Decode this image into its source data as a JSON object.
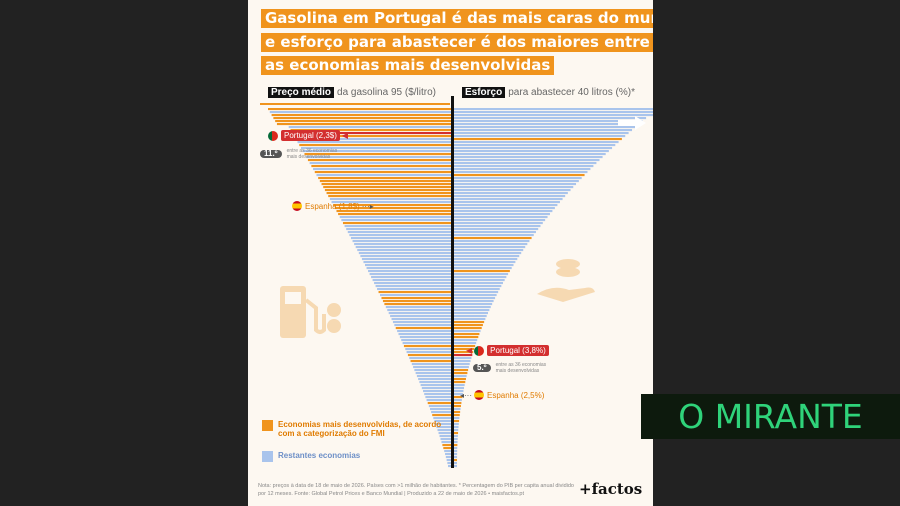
{
  "title": {
    "lines": [
      "Gasolina em Portugal é das mais caras do mundo",
      "e esforço para abastecer é dos maiores entre",
      "as economias mais desenvolvidas"
    ]
  },
  "left_header": {
    "strong": "Preço médio",
    "rest": "da gasolina 95 ($/litro)"
  },
  "right_header": {
    "strong": "Esforço",
    "rest": "para abastecer 40 litros (%)*"
  },
  "annotations": {
    "left_portugal": "Portugal (2,3$)",
    "left_spain": "Espanha (1,8$)",
    "left_rank": "11.º",
    "left_rank_note": "entre as 36 economias mais desenvolvidas",
    "right_portugal": "Portugal (3,8%)",
    "right_spain": "Espanha (2,5%)",
    "right_rank": "5.º",
    "right_rank_note": "entre as 36 economias mais desenvolvidas"
  },
  "legend": {
    "developed": "Economias mais desenvolvidas, de acordo com a categorização do FMI",
    "rest": "Restantes economias"
  },
  "note": "Nota: preços à data de 18 de maio de 2026. Países com >1 milhão de habitantes. * Percentagem do PIB per capita anual dividido por 12 meses. Fonte: Global Petrol Prices e Banco Mundial | Produzido a 22 de maio de 2026 • maisfactos.pt",
  "brand": "+factos",
  "overlay": {
    "text": "O MIRANTE"
  },
  "colors": {
    "developed": "#f0941d",
    "rest": "#a9c4ec",
    "highlight": "#d32f2f",
    "accent": "#f0941d"
  },
  "chart_data": [
    {
      "type": "bar",
      "orientation": "horizontal",
      "title": "Preço médio da gasolina 95 ($/litro)",
      "series_note": "Countries sorted descending; orange = economias mais desenvolvidas, blue = restantes economias",
      "highlights": [
        {
          "label": "Portugal",
          "value": 2.3,
          "unit": "$"
        },
        {
          "label": "Espanha",
          "value": 1.8,
          "unit": "$"
        }
      ],
      "rank_portugal": "11.º"
    },
    {
      "type": "bar",
      "orientation": "horizontal",
      "title": "Esforço para abastecer 40 litros (%)*",
      "series_note": "Countries sorted ascending; orange = economias mais desenvolvidas, blue = restantes economias",
      "highlights": [
        {
          "label": "Portugal",
          "value": 3.8,
          "unit": "%"
        },
        {
          "label": "Espanha",
          "value": 2.5,
          "unit": "%"
        }
      ],
      "rank_portugal": "5.º"
    }
  ]
}
